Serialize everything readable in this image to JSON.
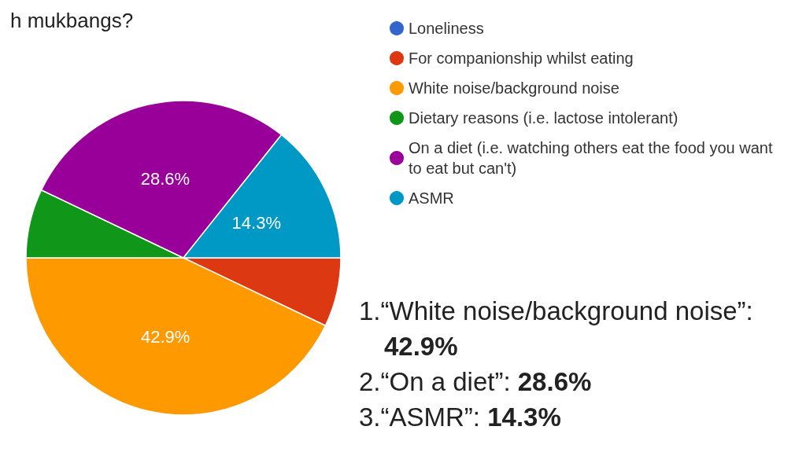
{
  "chart_data": {
    "type": "pie",
    "title": "h mukbangs?",
    "categories": [
      "Loneliness",
      "For companionship whilst eating",
      "White noise/background noise",
      "Dietary reasons (i.e. lactose intolerant)",
      "On a diet (i.e. watching others eat the food you want to eat but can't)",
      "ASMR"
    ],
    "values": [
      0,
      7.1,
      42.9,
      7.1,
      28.6,
      14.3
    ],
    "colors": [
      "#3366cc",
      "#dc3912",
      "#ff9900",
      "#109618",
      "#990099",
      "#0099c6"
    ],
    "value_labels": [
      null,
      null,
      "42.9%",
      null,
      "28.6%",
      "14.3%"
    ],
    "legend": "right",
    "annotations": [
      "1.“White noise/background noise”: 42.9%",
      "2.“On a diet”: 28.6%",
      "3.“ASMR”: 14.3%"
    ]
  }
}
